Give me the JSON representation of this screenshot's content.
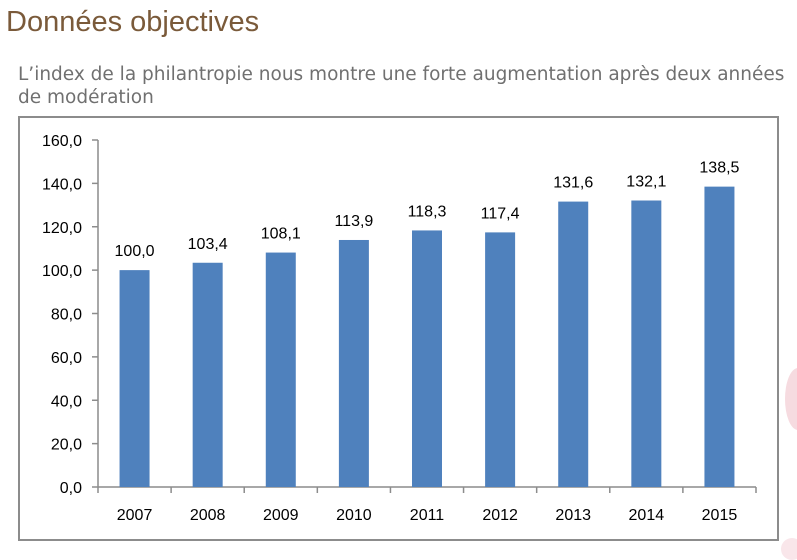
{
  "slide": {
    "title": "Données objectives",
    "subtitle": "L’index de la philantropie nous montre une forte augmentation après deux années de modération"
  },
  "chart_data": {
    "type": "bar",
    "categories": [
      "2007",
      "2008",
      "2009",
      "2010",
      "2011",
      "2012",
      "2013",
      "2014",
      "2015"
    ],
    "values": [
      100.0,
      103.4,
      108.1,
      113.9,
      118.3,
      117.4,
      131.6,
      132.1,
      138.5
    ],
    "data_labels": [
      "100,0",
      "103,4",
      "108,1",
      "113,9",
      "118,3",
      "117,4",
      "131,6",
      "132,1",
      "138,5"
    ],
    "y_ticks": [
      "0,0",
      "20,0",
      "40,0",
      "60,0",
      "80,0",
      "100,0",
      "120,0",
      "140,0",
      "160,0"
    ],
    "ylim": [
      0,
      160
    ],
    "grid": false,
    "legend": "none",
    "title": "",
    "xlabel": "",
    "ylabel": "",
    "bar_color": "#4f81bd"
  }
}
